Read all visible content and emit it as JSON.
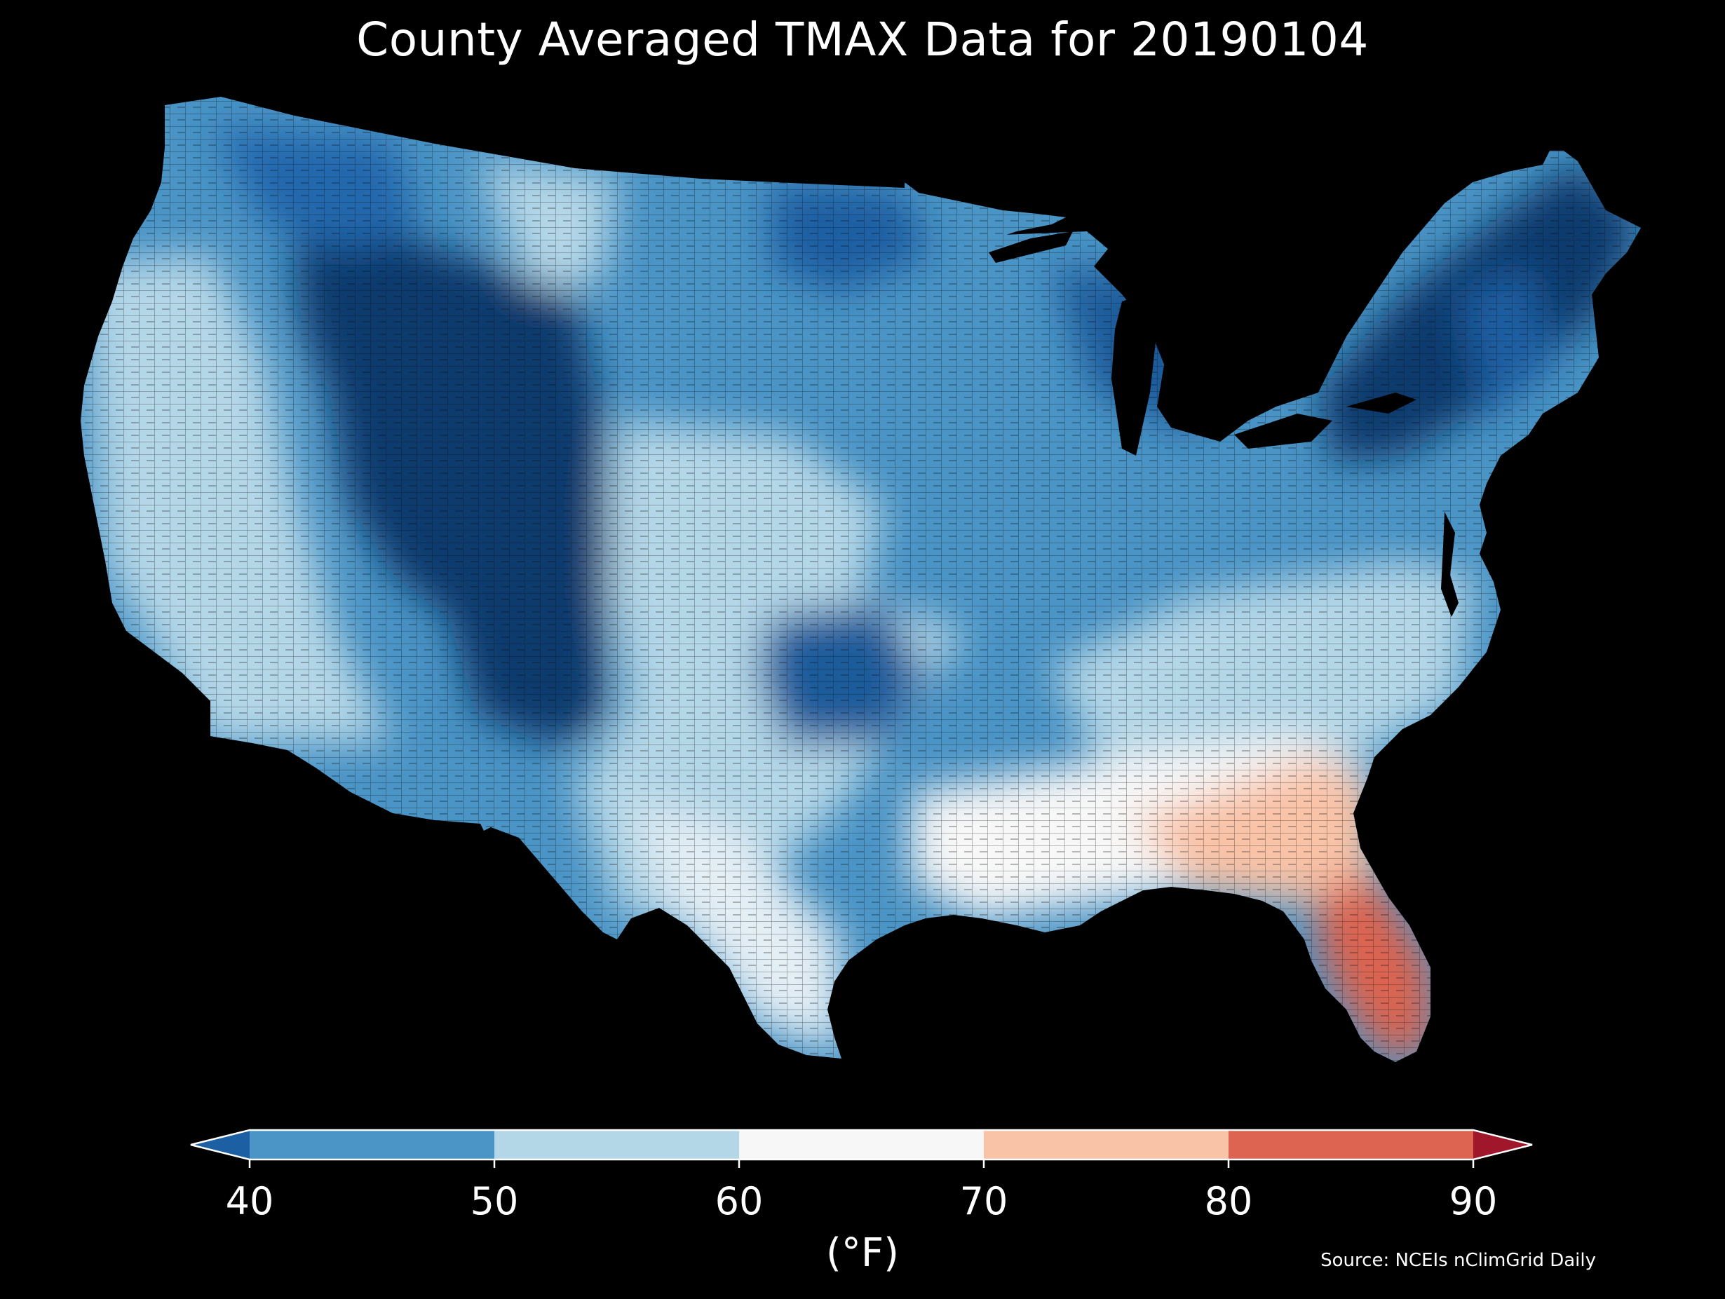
{
  "title": "County Averaged TMAX Data for 20190104",
  "colorbar": {
    "units": "(°F)",
    "ticks": [
      "40",
      "50",
      "60",
      "70",
      "80",
      "90"
    ],
    "bins": [
      {
        "range": "<40",
        "color": "#1d5fa3"
      },
      {
        "range": "40-50",
        "color": "#4a94c6"
      },
      {
        "range": "50-60",
        "color": "#b4d7e8"
      },
      {
        "range": "60-70",
        "color": "#f7f7f7"
      },
      {
        "range": "70-80",
        "color": "#f9c3a7"
      },
      {
        "range": "80-90",
        "color": "#dc6450"
      },
      {
        "range": ">90",
        "color": "#a0162b"
      }
    ]
  },
  "source": "Source: NCEIs nClimGrid Daily",
  "map": {
    "region": "Contiguous United States",
    "variable": "TMAX",
    "date": "20190104",
    "background": "#000000",
    "pattern": "Coldest (<40°F) across the central Rockies and northern Maine; 40-50°F across much of the north and Midwest; 50-60°F in the Pacific coast, Texas and mid-Atlantic; 60-70°F along the Gulf coast; 70-80°F in Georgia and north Florida; 80-90°F in peninsular Florida."
  }
}
